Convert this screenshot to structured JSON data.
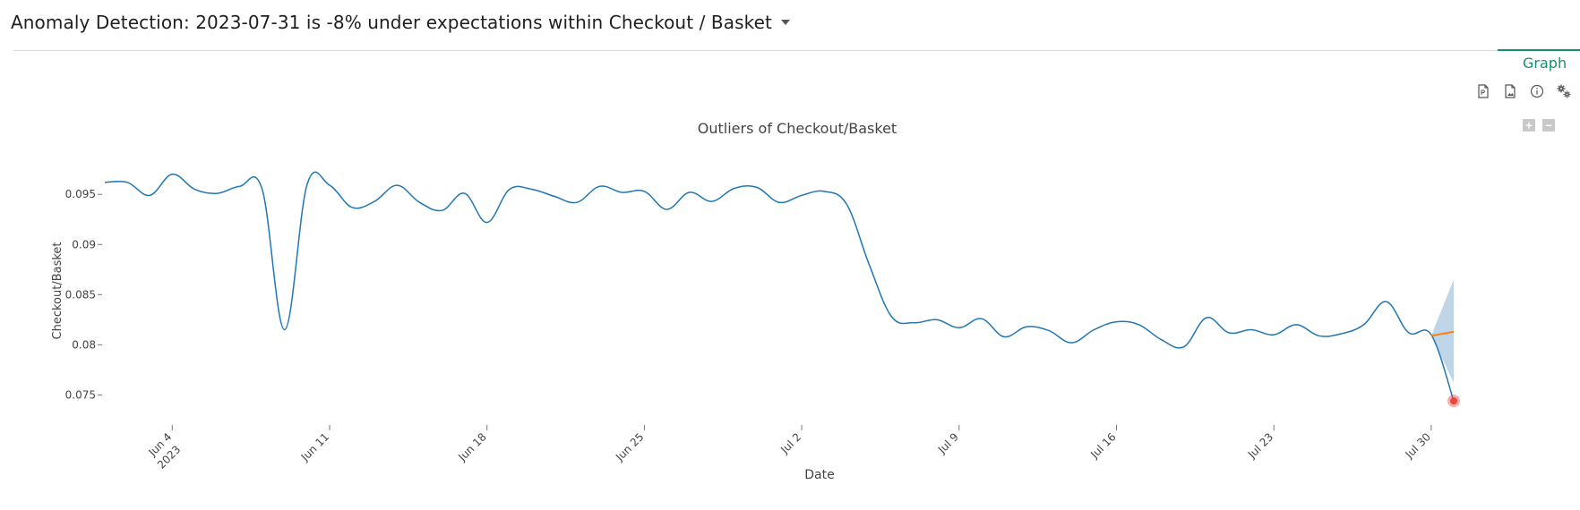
{
  "header": {
    "title": "Anomaly Detection: 2023-07-31 is -8% under expectations within Checkout / Basket"
  },
  "tabs": [
    {
      "label": "Graph",
      "active": true
    }
  ],
  "toolbar": {
    "icons": [
      "pdf-icon",
      "image-icon",
      "info-icon",
      "gear-icon"
    ]
  },
  "colors": {
    "series": "#1f77b4",
    "expected": "#ff7f0e",
    "band": "#aac8e2",
    "anomaly": "#e8483b",
    "accent": "#1a8f6f"
  },
  "chart_data": {
    "type": "line",
    "title": "Outliers of Checkout/Basket",
    "xlabel": "Date",
    "ylabel": "Checkout/Basket",
    "xlim": [
      "2023-06-01",
      "2023-07-31"
    ],
    "ylim": [
      0.072,
      0.0985
    ],
    "x_ticks": [
      {
        "date": "2023-06-04",
        "label": "Jun 4",
        "sublabel": "2023"
      },
      {
        "date": "2023-06-11",
        "label": "Jun 11"
      },
      {
        "date": "2023-06-18",
        "label": "Jun 18"
      },
      {
        "date": "2023-06-25",
        "label": "Jun 25"
      },
      {
        "date": "2023-07-02",
        "label": "Jul 2"
      },
      {
        "date": "2023-07-09",
        "label": "Jul 9"
      },
      {
        "date": "2023-07-16",
        "label": "Jul 16"
      },
      {
        "date": "2023-07-23",
        "label": "Jul 23"
      },
      {
        "date": "2023-07-30",
        "label": "Jul 30"
      }
    ],
    "y_ticks": [
      {
        "value": 0.075,
        "label": "0.075"
      },
      {
        "value": 0.08,
        "label": "0.08"
      },
      {
        "value": 0.085,
        "label": "0.085"
      },
      {
        "value": 0.09,
        "label": "0.09"
      },
      {
        "value": 0.095,
        "label": "0.095"
      }
    ],
    "grid": false,
    "series": [
      {
        "name": "Checkout/Basket",
        "x": [
          "2023-06-01",
          "2023-06-02",
          "2023-06-03",
          "2023-06-04",
          "2023-06-05",
          "2023-06-06",
          "2023-06-07",
          "2023-06-08",
          "2023-06-09",
          "2023-06-10",
          "2023-06-11",
          "2023-06-12",
          "2023-06-13",
          "2023-06-14",
          "2023-06-15",
          "2023-06-16",
          "2023-06-17",
          "2023-06-18",
          "2023-06-19",
          "2023-06-20",
          "2023-06-21",
          "2023-06-22",
          "2023-06-23",
          "2023-06-24",
          "2023-06-25",
          "2023-06-26",
          "2023-06-27",
          "2023-06-28",
          "2023-06-29",
          "2023-06-30",
          "2023-07-01",
          "2023-07-02",
          "2023-07-03",
          "2023-07-04",
          "2023-07-05",
          "2023-07-06",
          "2023-07-07",
          "2023-07-08",
          "2023-07-09",
          "2023-07-10",
          "2023-07-11",
          "2023-07-12",
          "2023-07-13",
          "2023-07-14",
          "2023-07-15",
          "2023-07-16",
          "2023-07-17",
          "2023-07-18",
          "2023-07-19",
          "2023-07-20",
          "2023-07-21",
          "2023-07-22",
          "2023-07-23",
          "2023-07-24",
          "2023-07-25",
          "2023-07-26",
          "2023-07-27",
          "2023-07-28",
          "2023-07-29",
          "2023-07-30",
          "2023-07-31"
        ],
        "y": [
          0.0962,
          0.0962,
          0.0949,
          0.097,
          0.0955,
          0.0951,
          0.0958,
          0.0955,
          0.0815,
          0.096,
          0.0959,
          0.0937,
          0.0943,
          0.0959,
          0.0942,
          0.0934,
          0.0951,
          0.0922,
          0.0955,
          0.0955,
          0.0948,
          0.0942,
          0.0958,
          0.0952,
          0.0953,
          0.0935,
          0.0952,
          0.0943,
          0.0956,
          0.0957,
          0.0942,
          0.0949,
          0.0953,
          0.094,
          0.088,
          0.0828,
          0.0822,
          0.0825,
          0.0817,
          0.0826,
          0.0808,
          0.0818,
          0.0814,
          0.0802,
          0.0815,
          0.0823,
          0.082,
          0.0805,
          0.0798,
          0.0827,
          0.0812,
          0.0815,
          0.081,
          0.082,
          0.0809,
          0.0811,
          0.082,
          0.0843,
          0.0812,
          0.081,
          0.0744
        ]
      },
      {
        "name": "expected",
        "x": [
          "2023-07-30",
          "2023-07-31"
        ],
        "y": [
          0.0809,
          0.0813
        ]
      }
    ],
    "band": {
      "x": [
        "2023-07-30",
        "2023-07-31"
      ],
      "upper": [
        0.0809,
        0.0865
      ],
      "lower": [
        0.0809,
        0.0762
      ]
    },
    "anomaly": {
      "x": "2023-07-31",
      "y": 0.0744
    }
  }
}
